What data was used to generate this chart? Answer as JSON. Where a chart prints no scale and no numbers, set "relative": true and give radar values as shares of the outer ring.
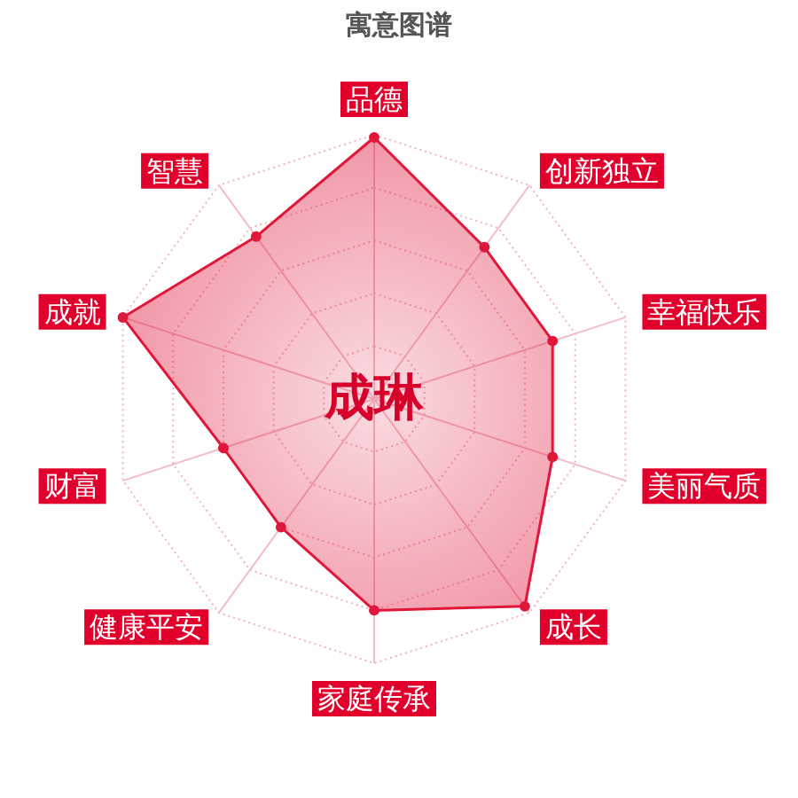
{
  "chart_data": {
    "type": "radar",
    "title": "寓意图谱",
    "categories": [
      "品德",
      "创新独立",
      "幸福快乐",
      "美丽气质",
      "成长",
      "家庭传承",
      "健康平安",
      "财富",
      "成就",
      "智慧"
    ],
    "relative": true,
    "series": [
      {
        "color": "#e0173a",
        "values": [
          0.99,
          0.71,
          0.71,
          0.71,
          0.97,
          0.8,
          0.6,
          0.6,
          1.0,
          0.76
        ]
      }
    ],
    "marker": "circle",
    "grid": true,
    "annotations": [
      "成琳"
    ]
  }
}
